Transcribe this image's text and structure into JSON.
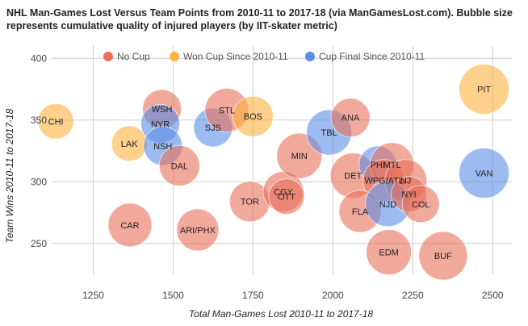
{
  "chart_data": {
    "type": "bubble",
    "title": "NHL Man-Games Lost Versus Team Points from 2010-11 to 2017-18 (via ManGamesLost.com). Bubble size represents cumulative quality of injured players (by IIT-skater metric)",
    "xlabel": "Total Man-Games Lost 2010-11 to 2017-18",
    "ylabel": "Team Wins 2010-11 to 2017-18",
    "xlim": [
      1120,
      2560
    ],
    "ylim": [
      225,
      410
    ],
    "xticks": [
      1250,
      1500,
      1750,
      2000,
      2250,
      2500
    ],
    "yticks": [
      250,
      300,
      350,
      400
    ],
    "grid": true,
    "legend_position": "top",
    "series": [
      {
        "name": "No Cup",
        "color": "#e8705a"
      },
      {
        "name": "Won Cup Since 2010-11",
        "color": "#fbb340"
      },
      {
        "name": "Cup Final Since 2010-11",
        "color": "#5b8ee6"
      }
    ],
    "points": [
      {
        "label": "CHI",
        "x": 1133,
        "y": 349,
        "size": 22,
        "series": 1
      },
      {
        "label": "LAK",
        "x": 1363,
        "y": 331,
        "size": 22,
        "series": 1
      },
      {
        "label": "CAR",
        "x": 1365,
        "y": 265,
        "size": 27,
        "series": 0
      },
      {
        "label": "WSH",
        "x": 1465,
        "y": 359,
        "size": 24,
        "series": 0
      },
      {
        "label": "NYR",
        "x": 1460,
        "y": 347,
        "size": 24,
        "series": 2
      },
      {
        "label": "NSH",
        "x": 1468,
        "y": 329,
        "size": 24,
        "series": 2
      },
      {
        "label": "DAL",
        "x": 1520,
        "y": 313,
        "size": 25,
        "series": 0
      },
      {
        "label": "ARI/PHX",
        "x": 1577,
        "y": 261,
        "size": 26,
        "series": 0
      },
      {
        "label": "SJS",
        "x": 1625,
        "y": 344,
        "size": 24,
        "series": 2
      },
      {
        "label": "STL",
        "x": 1668,
        "y": 358,
        "size": 27,
        "series": 0
      },
      {
        "label": "BOS",
        "x": 1750,
        "y": 353,
        "size": 25,
        "series": 1
      },
      {
        "label": "TOR",
        "x": 1740,
        "y": 284,
        "size": 25,
        "series": 0
      },
      {
        "label": "CGY",
        "x": 1845,
        "y": 292,
        "size": 25,
        "series": 0
      },
      {
        "label": "OTT",
        "x": 1855,
        "y": 288,
        "size": 22,
        "series": 0
      },
      {
        "label": "MIN",
        "x": 1895,
        "y": 321,
        "size": 28,
        "series": 0
      },
      {
        "label": "TBL",
        "x": 1988,
        "y": 340,
        "size": 28,
        "series": 2
      },
      {
        "label": "ANA",
        "x": 2055,
        "y": 352,
        "size": 24,
        "series": 0
      },
      {
        "label": "DET",
        "x": 2063,
        "y": 305,
        "size": 28,
        "series": 0
      },
      {
        "label": "PHI",
        "x": 2140,
        "y": 314,
        "size": 23,
        "series": 2
      },
      {
        "label": "MTL",
        "x": 2185,
        "y": 314,
        "size": 27,
        "series": 0
      },
      {
        "label": "WPG/ATL",
        "x": 2160,
        "y": 301,
        "size": 26,
        "series": 0
      },
      {
        "label": "NJ",
        "x": 2228,
        "y": 301,
        "size": 26,
        "series": 0
      },
      {
        "label": "FLA",
        "x": 2085,
        "y": 276,
        "size": 26,
        "series": 0
      },
      {
        "label": "NJD",
        "x": 2172,
        "y": 282,
        "size": 28,
        "series": 2
      },
      {
        "label": "NYI",
        "x": 2238,
        "y": 290,
        "size": 22,
        "series": 0
      },
      {
        "label": "COL",
        "x": 2275,
        "y": 282,
        "size": 23,
        "series": 0
      },
      {
        "label": "EDM",
        "x": 2175,
        "y": 243,
        "size": 28,
        "series": 0
      },
      {
        "label": "BUF",
        "x": 2345,
        "y": 240,
        "size": 30,
        "series": 0
      },
      {
        "label": "PIT",
        "x": 2473,
        "y": 375,
        "size": 31,
        "series": 1
      },
      {
        "label": "VAN",
        "x": 2473,
        "y": 307,
        "size": 31,
        "series": 2
      }
    ]
  }
}
